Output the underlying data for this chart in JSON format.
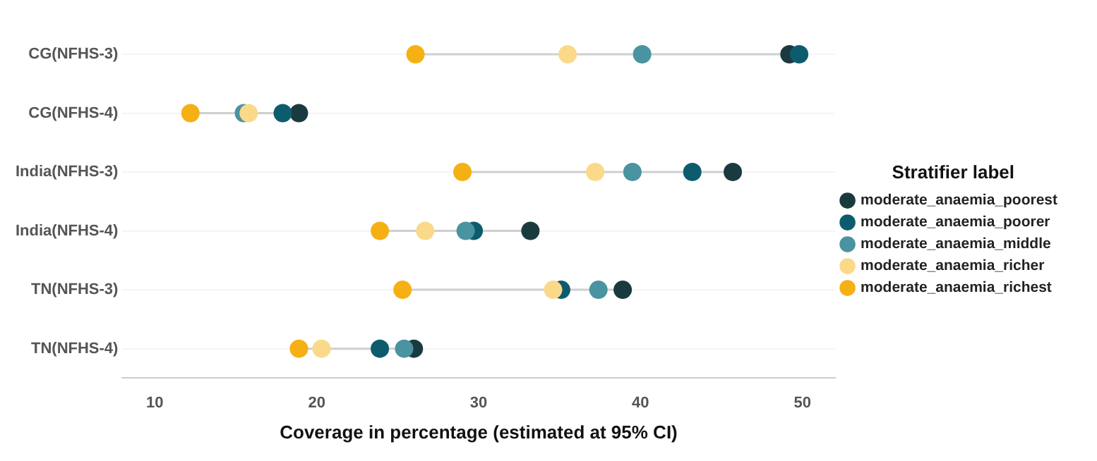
{
  "chart_data": {
    "type": "scatter",
    "orientation": "horizontal",
    "xlabel": "Coverage in percentage (estimated at 95% CI)",
    "legend_title": "Stratifier label",
    "legend": "right",
    "grid": "y",
    "marker": "circle",
    "categories": [
      "CG(NFHS-3)",
      "CG(NFHS-4)",
      "India(NFHS-3)",
      "India(NFHS-4)",
      "TN(NFHS-3)",
      "TN(NFHS-4)"
    ],
    "xlim": [
      8,
      52
    ],
    "xticks": [
      10,
      20,
      30,
      40,
      50
    ],
    "series": [
      {
        "name": "moderate_anaemia_poorest",
        "color": "#1b3a40",
        "values": [
          49.2,
          18.9,
          45.7,
          33.2,
          38.9,
          26.0
        ]
      },
      {
        "name": "moderate_anaemia_poorer",
        "color": "#0d5c6e",
        "values": [
          49.8,
          17.9,
          43.2,
          29.7,
          35.1,
          23.9
        ]
      },
      {
        "name": "moderate_anaemia_middle",
        "color": "#4a93a0",
        "values": [
          40.1,
          15.5,
          39.5,
          29.2,
          37.4,
          25.4
        ]
      },
      {
        "name": "moderate_anaemia_richer",
        "color": "#fbd98a",
        "values": [
          35.5,
          15.8,
          37.2,
          26.7,
          34.6,
          20.3
        ]
      },
      {
        "name": "moderate_anaemia_richest",
        "color": "#f5b014",
        "values": [
          26.1,
          12.2,
          29.0,
          23.9,
          25.3,
          18.9
        ]
      }
    ]
  }
}
